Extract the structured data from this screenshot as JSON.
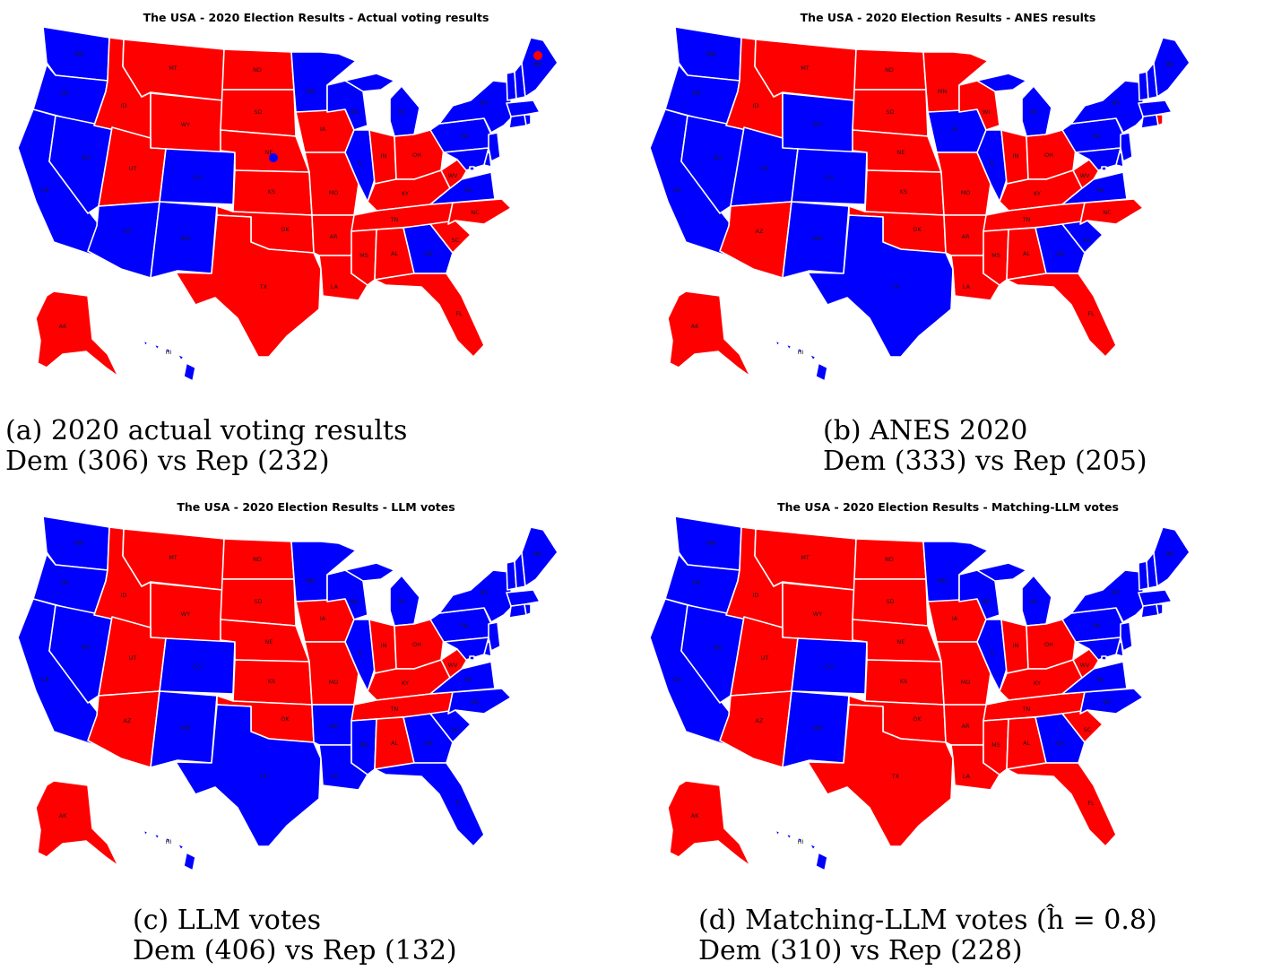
{
  "colors": {
    "dem": "#0000ff",
    "rep": "#ff0000",
    "border": "#ffffff"
  },
  "panels": [
    {
      "title": "The USA - 2020 Election Results - Actual voting results",
      "caption_line1": "(a) 2020 actual voting results",
      "caption_line2": "Dem (306) vs Rep (232)",
      "dem_states": [
        "WA",
        "OR",
        "CA",
        "NV",
        "AZ",
        "CO",
        "NM",
        "MN",
        "WI",
        "IL",
        "MI",
        "PA",
        "NY",
        "VT",
        "NH",
        "ME",
        "MA",
        "CT",
        "RI",
        "NJ",
        "DE",
        "MD",
        "VA",
        "GA",
        "HI",
        "DC"
      ],
      "markers": [
        {
          "near": "NE",
          "party": "dem"
        },
        {
          "near": "ME",
          "party": "rep"
        }
      ]
    },
    {
      "title": "The USA - 2020 Election Results - ANES results",
      "caption_line1": "(b) ANES 2020",
      "caption_line2": "Dem (333) vs Rep (205)",
      "dem_states": [
        "WA",
        "OR",
        "CA",
        "NV",
        "UT",
        "WY",
        "CO",
        "NM",
        "TX",
        "IA",
        "IL",
        "MI",
        "PA",
        "NY",
        "VT",
        "NH",
        "ME",
        "MA",
        "CT",
        "NJ",
        "DE",
        "MD",
        "VA",
        "GA",
        "SC",
        "HI",
        "DC"
      ],
      "markers": []
    },
    {
      "title": "The USA - 2020 Election Results - LLM votes",
      "caption_line1": "(c) LLM votes",
      "caption_line2": "Dem (406) vs Rep (132)",
      "dem_states": [
        "WA",
        "OR",
        "CA",
        "NV",
        "CO",
        "NM",
        "TX",
        "MN",
        "WI",
        "IL",
        "MI",
        "AR",
        "LA",
        "MS",
        "GA",
        "FL",
        "SC",
        "NC",
        "VA",
        "PA",
        "NY",
        "VT",
        "NH",
        "ME",
        "MA",
        "CT",
        "RI",
        "NJ",
        "DE",
        "MD",
        "HI",
        "DC"
      ],
      "markers": []
    },
    {
      "title": "The USA - 2020 Election Results - Matching-LLM votes",
      "caption_line1": "(d) Matching-LLM votes (ĥ = 0.8)",
      "caption_line2": "Dem (310) vs Rep (228)",
      "dem_states": [
        "WA",
        "OR",
        "CA",
        "NV",
        "CO",
        "NM",
        "MN",
        "WI",
        "IL",
        "MI",
        "PA",
        "NY",
        "VT",
        "NH",
        "ME",
        "MA",
        "CT",
        "RI",
        "NJ",
        "DE",
        "MD",
        "VA",
        "NC",
        "GA",
        "HI",
        "DC"
      ],
      "markers": []
    }
  ],
  "state_labels": [
    "WA",
    "OR",
    "CA",
    "NV",
    "ID",
    "MT",
    "WY",
    "UT",
    "AZ",
    "CO",
    "NM",
    "ND",
    "SD",
    "NE",
    "KS",
    "OK",
    "TX",
    "MN",
    "IA",
    "MO",
    "AR",
    "LA",
    "WI",
    "IL",
    "MI",
    "IN",
    "OH",
    "KY",
    "TN",
    "MS",
    "AL",
    "GA",
    "FL",
    "SC",
    "NC",
    "VA",
    "WV",
    "PA",
    "NY",
    "ME",
    "AK",
    "HI"
  ]
}
